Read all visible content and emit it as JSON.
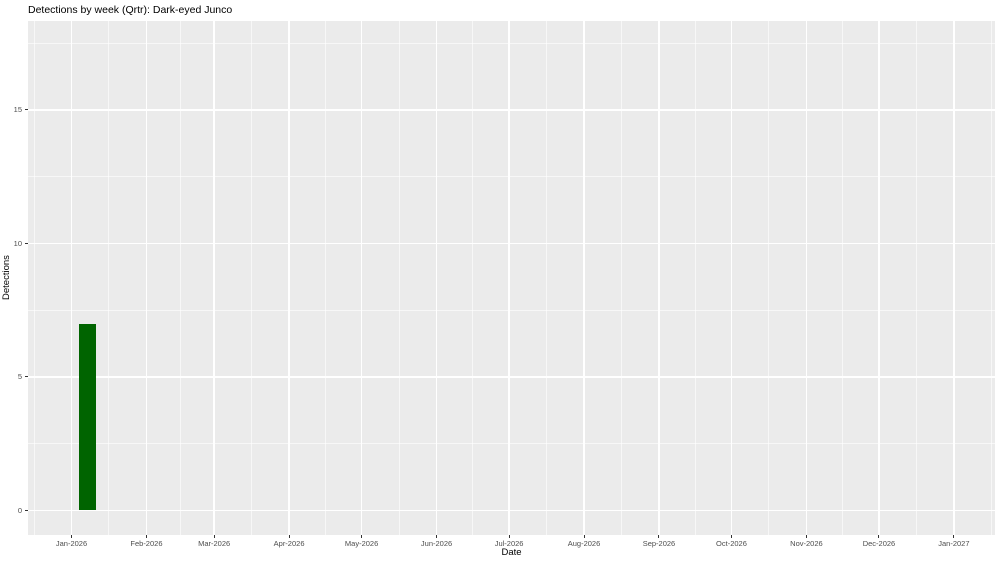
{
  "chart_data": {
    "type": "bar",
    "title": "Detections by week (Qrtr): Dark-eyed Junco",
    "xlabel": "Date",
    "ylabel": "Detections",
    "legend": "none",
    "grid": true,
    "panel_background": "#EBEBEB",
    "grid_major_color": "#FFFFFF",
    "grid_minor_color": "#FFFFFF",
    "tick_text_color": "#4D4D4D",
    "title_text_color": "#000000",
    "x_axis": {
      "epoch": "2026-01-01",
      "domain_days": [
        -18,
        382
      ],
      "tick_labels": [
        "Jan-2026",
        "Feb-2026",
        "Mar-2026",
        "Apr-2026",
        "May-2026",
        "Jun-2026",
        "Jul-2026",
        "Aug-2026",
        "Sep-2026",
        "Oct-2026",
        "Nov-2026",
        "Dec-2026",
        "Jan-2027"
      ],
      "tick_days": [
        0,
        31,
        59,
        90,
        120,
        151,
        181,
        212,
        243,
        273,
        304,
        334,
        365
      ],
      "minor_days": [
        -15.5,
        15.5,
        45,
        74.5,
        105,
        135.5,
        166,
        196.5,
        227.5,
        258,
        288.5,
        319,
        349.5,
        380.5
      ]
    },
    "y_axis": {
      "domain": [
        -0.92,
        18.33
      ],
      "tick_labels": [
        "0",
        "5",
        "10",
        "15"
      ],
      "tick_values": [
        0,
        5,
        10,
        15
      ],
      "minor_values": [
        2.5,
        7.5,
        12.5,
        17.5
      ]
    },
    "series": [
      {
        "name": "Dark-eyed Junco",
        "color": "#006400",
        "points": [
          {
            "week_of": "2026-01-04",
            "bar_start_day": 3,
            "bar_end_day": 10,
            "value": 7
          }
        ]
      }
    ]
  }
}
